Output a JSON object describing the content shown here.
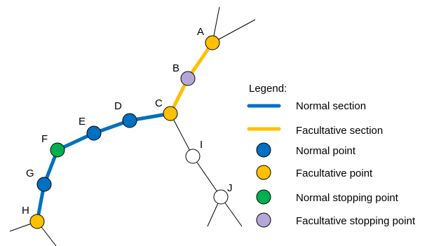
{
  "colors": {
    "normal_section": "#0070c0",
    "facultative_section": "#ffc000",
    "normal_point": "#0070c0",
    "facultative_point": "#ffc000",
    "normal_stopping_point": "#00b050",
    "facultative_stopping_point": "#b4a7d6",
    "free_point": "#ffffff",
    "free_line": "#000000"
  },
  "nodes": {
    "A": {
      "label": "A",
      "type": "facultative_point"
    },
    "B": {
      "label": "B",
      "type": "facultative_stopping_point"
    },
    "C": {
      "label": "C",
      "type": "facultative_point"
    },
    "D": {
      "label": "D",
      "type": "normal_point"
    },
    "E": {
      "label": "E",
      "type": "normal_point"
    },
    "F": {
      "label": "F",
      "type": "normal_stopping_point"
    },
    "G": {
      "label": "G",
      "type": "normal_point"
    },
    "H": {
      "label": "H",
      "type": "facultative_point"
    },
    "I": {
      "label": "I",
      "type": "free_point"
    },
    "J": {
      "label": "J",
      "type": "free_point"
    }
  },
  "legend": {
    "title": "Legend:",
    "normal_section": "Normal section",
    "facultative_section": "Facultative section",
    "normal_point": "Normal point",
    "facultative_point": "Facultative point",
    "normal_stopping_point": "Normal stopping point",
    "facultative_stopping_point": "Facultative stopping point"
  }
}
